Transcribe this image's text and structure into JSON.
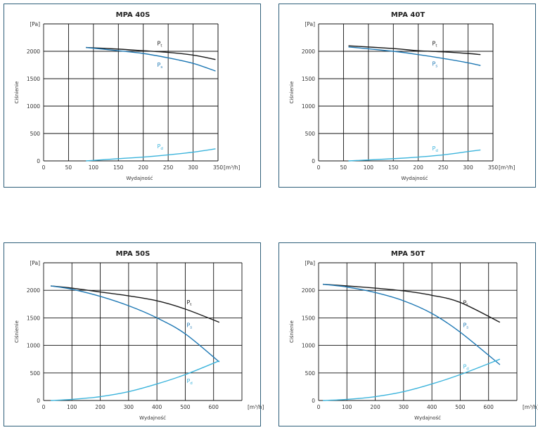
{
  "chart_data": [
    {
      "type": "line",
      "title": "MPA 40S",
      "xlabel": "Wydajność",
      "ylabel": "Ciśnienie",
      "yunit": "[Pa]",
      "xunit": "[m³/h]",
      "xlim": [
        0,
        350
      ],
      "ylim": [
        0,
        2500
      ],
      "xticks": [
        0,
        50,
        100,
        150,
        200,
        250,
        300,
        350
      ],
      "yticks": [
        0,
        500,
        1000,
        1500,
        2000
      ],
      "grid": true,
      "series": [
        {
          "name": "Pt",
          "color": "#1a1a1a",
          "x": [
            85,
            150,
            200,
            250,
            300,
            345
          ],
          "y": [
            2070,
            2040,
            2010,
            1980,
            1930,
            1850
          ]
        },
        {
          "name": "Ps",
          "color": "#1e78b4",
          "x": [
            85,
            150,
            200,
            250,
            300,
            345
          ],
          "y": [
            2070,
            2010,
            1960,
            1880,
            1780,
            1640
          ]
        },
        {
          "name": "Pd",
          "color": "#3cb4dc",
          "x": [
            85,
            150,
            200,
            250,
            300,
            345
          ],
          "y": [
            0,
            40,
            70,
            110,
            160,
            220
          ]
        }
      ],
      "labels": [
        {
          "text": "P",
          "sub": "t",
          "x": 228,
          "y": 2110,
          "color": "#1a1a1a"
        },
        {
          "text": "P",
          "sub": "s",
          "x": 228,
          "y": 1720,
          "color": "#1e78b4"
        },
        {
          "text": "P",
          "sub": "d",
          "x": 228,
          "y": 230,
          "color": "#3cb4dc"
        }
      ]
    },
    {
      "type": "line",
      "title": "MPA 40T",
      "xlabel": "Wydajność",
      "ylabel": "Ciśnienie",
      "yunit": "[Pa]",
      "xunit": "[m³/h]",
      "xlim": [
        0,
        350
      ],
      "ylim": [
        0,
        2500
      ],
      "xticks": [
        0,
        50,
        100,
        150,
        200,
        250,
        300,
        350
      ],
      "yticks": [
        0,
        500,
        1000,
        1500,
        2000
      ],
      "grid": true,
      "series": [
        {
          "name": "Pt",
          "color": "#1a1a1a",
          "x": [
            60,
            150,
            200,
            250,
            300,
            325
          ],
          "y": [
            2100,
            2050,
            2010,
            1990,
            1960,
            1940
          ]
        },
        {
          "name": "Ps",
          "color": "#1e78b4",
          "x": [
            60,
            150,
            200,
            250,
            300,
            325
          ],
          "y": [
            2080,
            2000,
            1940,
            1870,
            1790,
            1740
          ]
        },
        {
          "name": "Pd",
          "color": "#3cb4dc",
          "x": [
            60,
            150,
            200,
            250,
            300,
            325
          ],
          "y": [
            0,
            40,
            70,
            110,
            170,
            200
          ]
        }
      ],
      "labels": [
        {
          "text": "P",
          "sub": "t",
          "x": 228,
          "y": 2110,
          "color": "#1a1a1a"
        },
        {
          "text": "P",
          "sub": "s",
          "x": 228,
          "y": 1740,
          "color": "#1e78b4"
        },
        {
          "text": "P",
          "sub": "d",
          "x": 228,
          "y": 190,
          "color": "#3cb4dc"
        }
      ]
    },
    {
      "type": "line",
      "title": "MPA 50S",
      "xlabel": "Wydajność",
      "ylabel": "Ciśnienie",
      "yunit": "[Pa]",
      "xunit": "[m³/h]",
      "xlim": [
        0,
        700
      ],
      "ylim": [
        0,
        2500
      ],
      "xticks": [
        0,
        100,
        200,
        300,
        400,
        500,
        600
      ],
      "yticks": [
        0,
        500,
        1000,
        1500,
        2000
      ],
      "grid": true,
      "series": [
        {
          "name": "Pt",
          "color": "#1a1a1a",
          "x": [
            25,
            100,
            200,
            300,
            400,
            500,
            620
          ],
          "y": [
            2080,
            2040,
            1970,
            1900,
            1810,
            1660,
            1420
          ]
        },
        {
          "name": "Ps",
          "color": "#1e78b4",
          "x": [
            25,
            100,
            200,
            300,
            400,
            500,
            620
          ],
          "y": [
            2080,
            2020,
            1890,
            1720,
            1500,
            1210,
            700
          ]
        },
        {
          "name": "Pd",
          "color": "#3cb4dc",
          "x": [
            25,
            100,
            200,
            300,
            400,
            500,
            620
          ],
          "y": [
            0,
            20,
            70,
            160,
            300,
            470,
            720
          ]
        }
      ],
      "labels": [
        {
          "text": "P",
          "sub": "t",
          "x": 505,
          "y": 1750,
          "color": "#1a1a1a"
        },
        {
          "text": "P",
          "sub": "s",
          "x": 505,
          "y": 1330,
          "color": "#1e78b4"
        },
        {
          "text": "P",
          "sub": "d",
          "x": 505,
          "y": 320,
          "color": "#3cb4dc"
        }
      ]
    },
    {
      "type": "line",
      "title": "MPA 50T",
      "xlabel": "Wydajność",
      "ylabel": "Ciśnienie",
      "yunit": "[Pa]",
      "xunit": "[m³/h]",
      "xlim": [
        0,
        700
      ],
      "ylim": [
        0,
        2500
      ],
      "xticks": [
        0,
        100,
        200,
        300,
        400,
        500,
        600
      ],
      "yticks": [
        0,
        500,
        1000,
        1500,
        2000
      ],
      "grid": true,
      "series": [
        {
          "name": "Pt",
          "color": "#1a1a1a",
          "x": [
            15,
            100,
            200,
            300,
            400,
            500,
            640
          ],
          "y": [
            2110,
            2080,
            2040,
            1990,
            1910,
            1780,
            1420
          ]
        },
        {
          "name": "Ps",
          "color": "#1e78b4",
          "x": [
            15,
            100,
            200,
            300,
            400,
            500,
            640
          ],
          "y": [
            2110,
            2060,
            1960,
            1810,
            1580,
            1240,
            650
          ]
        },
        {
          "name": "Pd",
          "color": "#3cb4dc",
          "x": [
            15,
            100,
            200,
            300,
            400,
            500,
            640
          ],
          "y": [
            0,
            20,
            70,
            160,
            300,
            470,
            750
          ]
        }
      ],
      "labels": [
        {
          "text": "P",
          "sub": "t",
          "x": 510,
          "y": 1740,
          "color": "#1a1a1a"
        },
        {
          "text": "P",
          "sub": "s",
          "x": 510,
          "y": 1330,
          "color": "#1e78b4"
        },
        {
          "text": "P",
          "sub": "d",
          "x": 510,
          "y": 580,
          "color": "#3cb4dc"
        }
      ]
    }
  ]
}
